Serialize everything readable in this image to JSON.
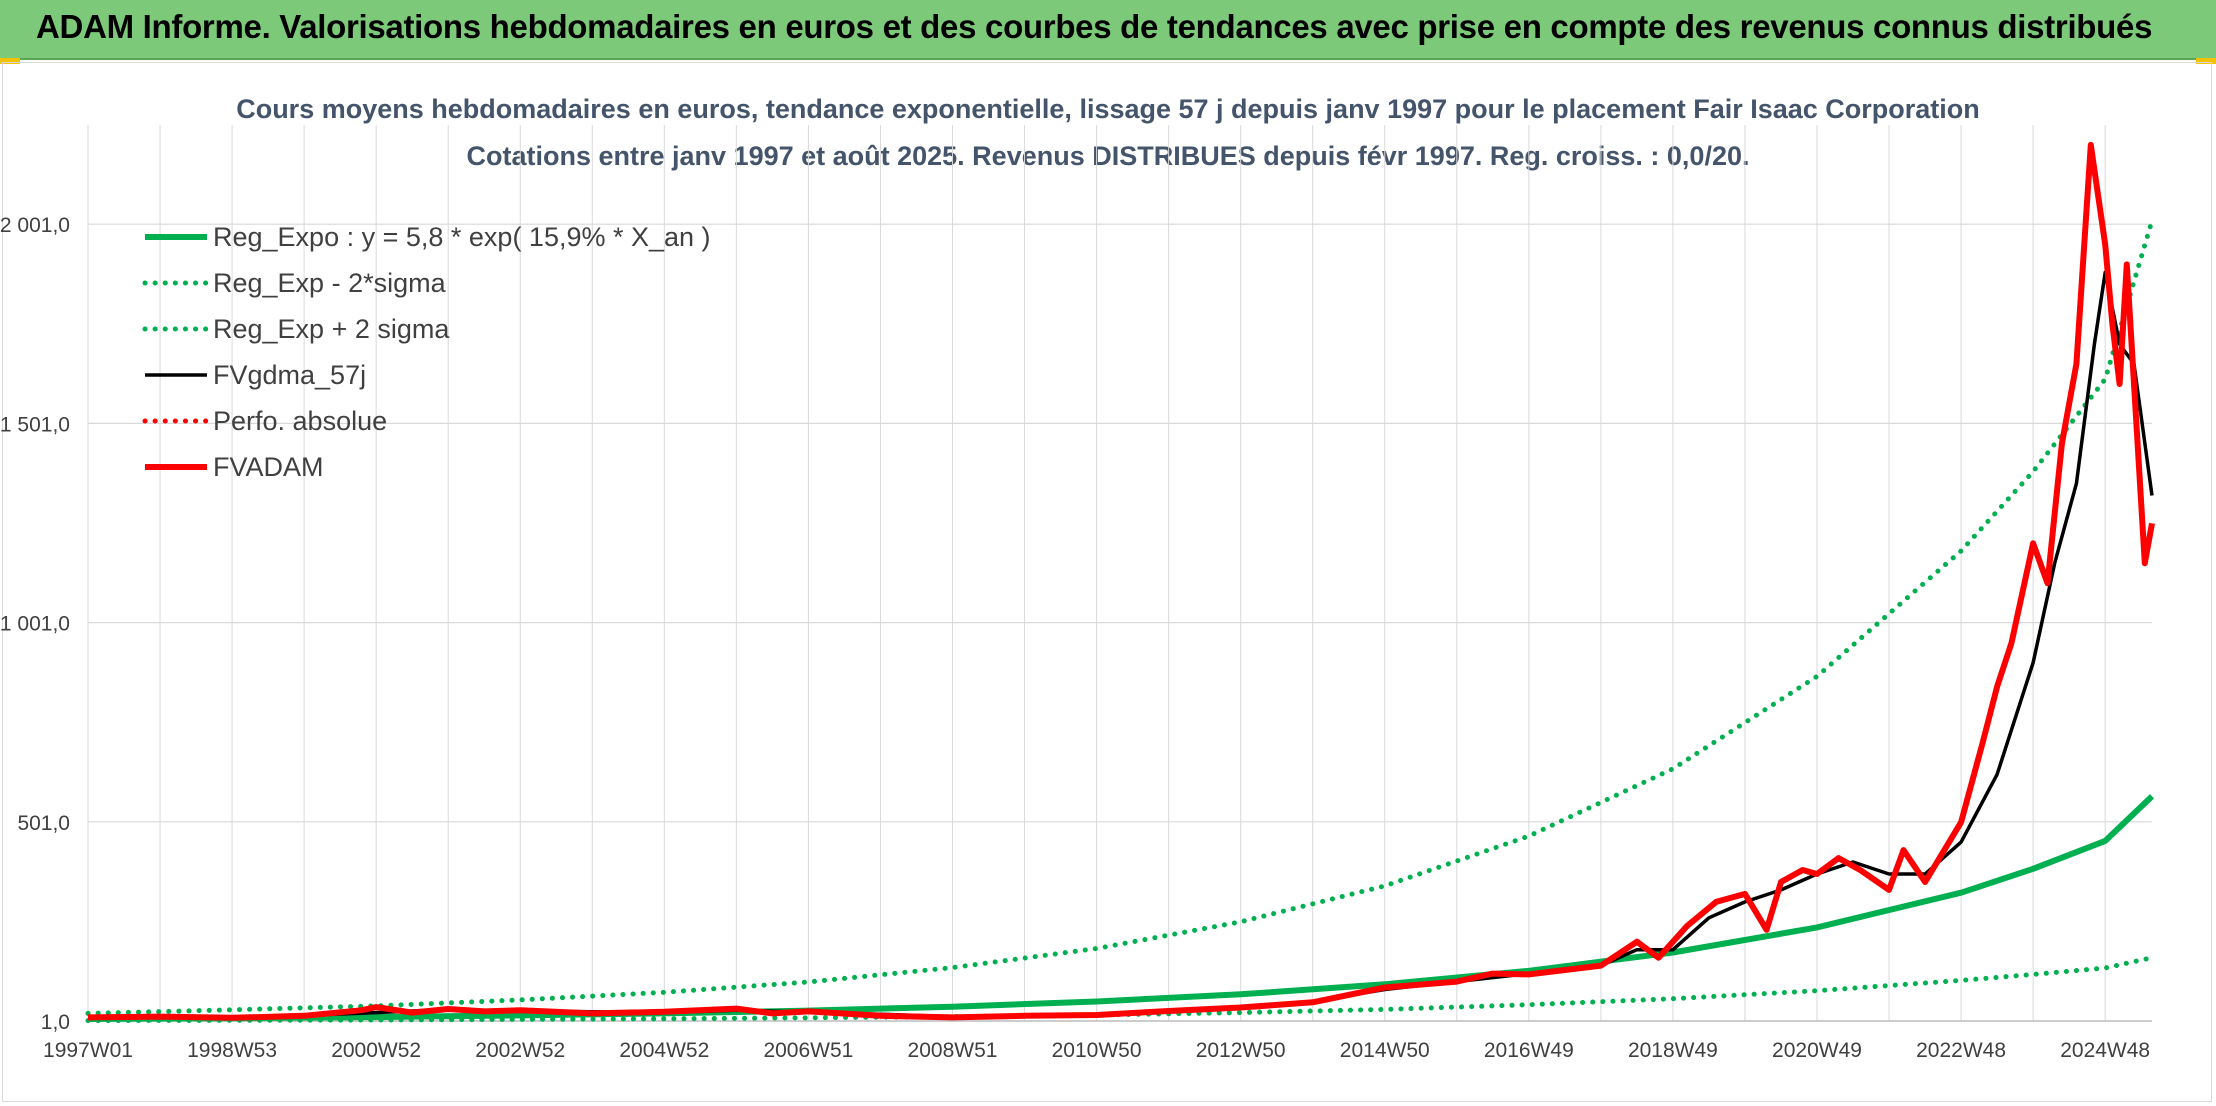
{
  "header": {
    "title": "ADAM Informe. Valorisations hebdomadaires en euros et des courbes de tendances avec prise en compte des revenus connus distribués"
  },
  "colors": {
    "banner": "#7dc97a",
    "green": "#00b050",
    "black": "#000000",
    "red": "#ff0000",
    "grid": "#d9d9d9",
    "text": "#404040",
    "title_text": "#44546a"
  },
  "chart_data": {
    "type": "line",
    "title": "Cours moyens hebdomadaires en euros, tendance exponentielle, lissage 57 j depuis janv 1997 pour le placement Fair Isaac Corporation",
    "subtitle": "Cotations entre janv 1997 et août 2025. Revenus DISTRIBUES depuis févr 1997. Reg. croiss. : 0,0/20.",
    "xlabel": "",
    "ylabel": "",
    "x_range": [
      1997.0,
      2025.65
    ],
    "ylim": [
      1,
      2250
    ],
    "grid": true,
    "legend_position": "top-left",
    "x_ticks": [
      {
        "label": "1997W01",
        "x": 1997.0
      },
      {
        "label": "1998W53",
        "x": 1999.0
      },
      {
        "label": "2000W52",
        "x": 2001.0
      },
      {
        "label": "2002W52",
        "x": 2003.0
      },
      {
        "label": "2004W52",
        "x": 2005.0
      },
      {
        "label": "2006W51",
        "x": 2007.0
      },
      {
        "label": "2008W51",
        "x": 2009.0
      },
      {
        "label": "2010W50",
        "x": 2011.0
      },
      {
        "label": "2012W50",
        "x": 2013.0
      },
      {
        "label": "2014W50",
        "x": 2015.0
      },
      {
        "label": "2016W49",
        "x": 2017.0
      },
      {
        "label": "2018W49",
        "x": 2019.0
      },
      {
        "label": "2020W49",
        "x": 2021.0
      },
      {
        "label": "2022W48",
        "x": 2023.0
      },
      {
        "label": "2024W48",
        "x": 2025.0
      }
    ],
    "y_ticks": [
      {
        "label": "1,0",
        "y": 1
      },
      {
        "label": "501,0",
        "y": 501
      },
      {
        "label": "1 001,0",
        "y": 1001
      },
      {
        "label": "1 501,0",
        "y": 1501
      },
      {
        "label": "2 001,0",
        "y": 2001
      }
    ],
    "series": [
      {
        "name": "Reg_Expo : y = 5,8 * exp( 15,9% *  X_an )",
        "style": "solid-thick",
        "color": "#00b050",
        "points": [
          [
            1997,
            6
          ],
          [
            1999,
            8
          ],
          [
            2001,
            11
          ],
          [
            2003,
            15
          ],
          [
            2005,
            20
          ],
          [
            2007,
            27
          ],
          [
            2009,
            37
          ],
          [
            2011,
            50
          ],
          [
            2013,
            68
          ],
          [
            2015,
            93
          ],
          [
            2017,
            127
          ],
          [
            2019,
            173
          ],
          [
            2021,
            236
          ],
          [
            2023,
            323
          ],
          [
            2024,
            383
          ],
          [
            2025,
            453
          ],
          [
            2025.65,
            565
          ]
        ]
      },
      {
        "name": "Reg_Exp - 2*sigma",
        "style": "dotted",
        "color": "#00b050",
        "points": [
          [
            1997,
            2
          ],
          [
            1999,
            2.5
          ],
          [
            2001,
            3.4
          ],
          [
            2003,
            5
          ],
          [
            2005,
            6.5
          ],
          [
            2007,
            9
          ],
          [
            2009,
            12
          ],
          [
            2011,
            16
          ],
          [
            2013,
            22
          ],
          [
            2015,
            30
          ],
          [
            2017,
            42
          ],
          [
            2019,
            57
          ],
          [
            2021,
            77
          ],
          [
            2023,
            103
          ],
          [
            2024,
            118
          ],
          [
            2025,
            134
          ],
          [
            2025.65,
            160
          ]
        ]
      },
      {
        "name": "Reg_Exp + 2 sigma",
        "style": "dotted",
        "color": "#00b050",
        "points": [
          [
            1997,
            20
          ],
          [
            1999,
            29
          ],
          [
            2001,
            39
          ],
          [
            2003,
            54
          ],
          [
            2005,
            73
          ],
          [
            2007,
            99
          ],
          [
            2009,
            135
          ],
          [
            2011,
            183
          ],
          [
            2013,
            250
          ],
          [
            2015,
            340
          ],
          [
            2017,
            465
          ],
          [
            2019,
            634
          ],
          [
            2021,
            866
          ],
          [
            2023,
            1181
          ],
          [
            2024,
            1380
          ],
          [
            2025,
            1612
          ],
          [
            2025.65,
            2010
          ]
        ]
      },
      {
        "name": "FVgdma_57j",
        "style": "solid",
        "color": "#000000",
        "points": [
          [
            1997,
            10
          ],
          [
            1998,
            11
          ],
          [
            1999,
            11
          ],
          [
            2000,
            15
          ],
          [
            2001,
            22
          ],
          [
            2002,
            30
          ],
          [
            2003,
            26
          ],
          [
            2004,
            24
          ],
          [
            2005,
            22
          ],
          [
            2006,
            28
          ],
          [
            2007,
            23
          ],
          [
            2008,
            18
          ],
          [
            2009,
            12
          ],
          [
            2010,
            14
          ],
          [
            2011,
            17
          ],
          [
            2012,
            25
          ],
          [
            2013,
            33
          ],
          [
            2014,
            50
          ],
          [
            2015,
            80
          ],
          [
            2016,
            100
          ],
          [
            2017,
            120
          ],
          [
            2018,
            140
          ],
          [
            2018.5,
            180
          ],
          [
            2019,
            180
          ],
          [
            2019.5,
            260
          ],
          [
            2020,
            300
          ],
          [
            2020.5,
            330
          ],
          [
            2021,
            370
          ],
          [
            2021.5,
            400
          ],
          [
            2022,
            370
          ],
          [
            2022.5,
            370
          ],
          [
            2023,
            450
          ],
          [
            2023.5,
            620
          ],
          [
            2024,
            900
          ],
          [
            2024.3,
            1150
          ],
          [
            2024.6,
            1350
          ],
          [
            2024.85,
            1700
          ],
          [
            2025,
            1880
          ],
          [
            2025.2,
            1700
          ],
          [
            2025.4,
            1650
          ],
          [
            2025.65,
            1320
          ]
        ]
      },
      {
        "name": "Perfo. absolue",
        "style": "dotted",
        "color": "#ff0000",
        "points": []
      },
      {
        "name": "FVADAM",
        "style": "solid-thick",
        "color": "#ff0000",
        "points": [
          [
            1997,
            10
          ],
          [
            1998,
            12
          ],
          [
            1999,
            9
          ],
          [
            2000,
            14
          ],
          [
            2000.8,
            28
          ],
          [
            2001,
            36
          ],
          [
            2001.5,
            22
          ],
          [
            2002,
            31
          ],
          [
            2002.5,
            25
          ],
          [
            2003,
            28
          ],
          [
            2004,
            20
          ],
          [
            2005,
            24
          ],
          [
            2006,
            32
          ],
          [
            2006.5,
            20
          ],
          [
            2007,
            25
          ],
          [
            2008,
            14
          ],
          [
            2009,
            10
          ],
          [
            2010,
            14
          ],
          [
            2011,
            16
          ],
          [
            2012,
            26
          ],
          [
            2013,
            35
          ],
          [
            2014,
            48
          ],
          [
            2015,
            85
          ],
          [
            2016,
            100
          ],
          [
            2016.5,
            120
          ],
          [
            2017,
            118
          ],
          [
            2018,
            140
          ],
          [
            2018.5,
            200
          ],
          [
            2018.8,
            160
          ],
          [
            2019.2,
            240
          ],
          [
            2019.6,
            300
          ],
          [
            2020,
            320
          ],
          [
            2020.3,
            230
          ],
          [
            2020.5,
            350
          ],
          [
            2020.8,
            380
          ],
          [
            2021,
            370
          ],
          [
            2021.3,
            410
          ],
          [
            2021.6,
            380
          ],
          [
            2022,
            330
          ],
          [
            2022.2,
            430
          ],
          [
            2022.5,
            350
          ],
          [
            2023,
            500
          ],
          [
            2023.3,
            700
          ],
          [
            2023.5,
            840
          ],
          [
            2023.7,
            950
          ],
          [
            2024,
            1200
          ],
          [
            2024.2,
            1100
          ],
          [
            2024.4,
            1450
          ],
          [
            2024.6,
            1650
          ],
          [
            2024.8,
            2200
          ],
          [
            2025,
            1950
          ],
          [
            2025.1,
            1750
          ],
          [
            2025.2,
            1600
          ],
          [
            2025.3,
            1900
          ],
          [
            2025.45,
            1450
          ],
          [
            2025.55,
            1150
          ],
          [
            2025.65,
            1250
          ]
        ]
      }
    ]
  }
}
